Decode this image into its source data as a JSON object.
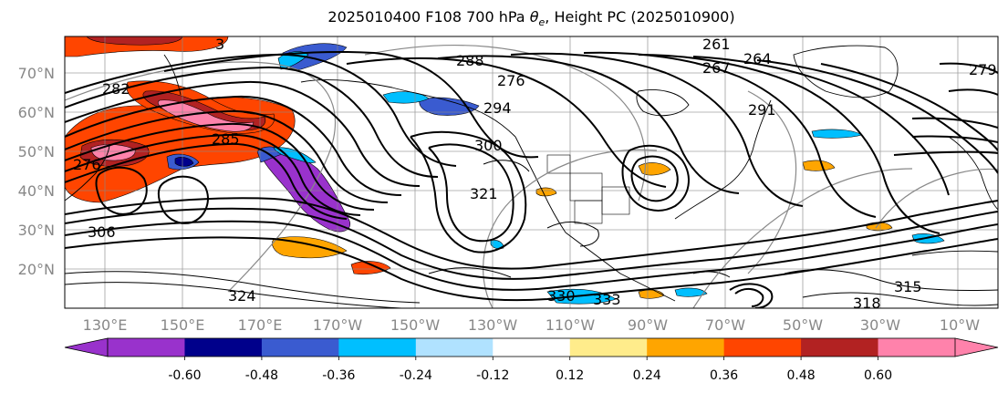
{
  "title_prefix": "2025010400 F108 700 hPa ",
  "title_var": "θ",
  "title_sub": "e",
  "title_suffix": ", Height PC (2025010900)",
  "lat_labels": [
    "70°N",
    "60°N",
    "50°N",
    "40°N",
    "30°N",
    "20°N"
  ],
  "lon_labels": [
    "130°E",
    "150°E",
    "170°E",
    "170°W",
    "150°W",
    "130°W",
    "110°W",
    "90°W",
    "70°W",
    "50°W",
    "30°W",
    "10°W"
  ],
  "colorbar": {
    "colors": [
      "#9932cc",
      "#00008b",
      "#3a5bd0",
      "#00bfff",
      "#b0e2ff",
      "#ffffff",
      "#ffec8b",
      "#ffa500",
      "#ff4500",
      "#b22222",
      "#ff82ab"
    ],
    "tick_labels": [
      "-0.60",
      "-0.48",
      "-0.36",
      "-0.24",
      "-0.12",
      "0.12",
      "0.24",
      "0.36",
      "0.48",
      "0.60"
    ]
  },
  "contour_labels": [
    "282",
    "276",
    "288",
    "285",
    "276",
    "294",
    "300",
    "321",
    "306",
    "324",
    "330",
    "333",
    "318",
    "315",
    "279",
    "291",
    "267",
    "264",
    "261",
    "3"
  ],
  "colors": {
    "frame": "#000000",
    "grid": "#888888",
    "tick_text": "#888888"
  }
}
